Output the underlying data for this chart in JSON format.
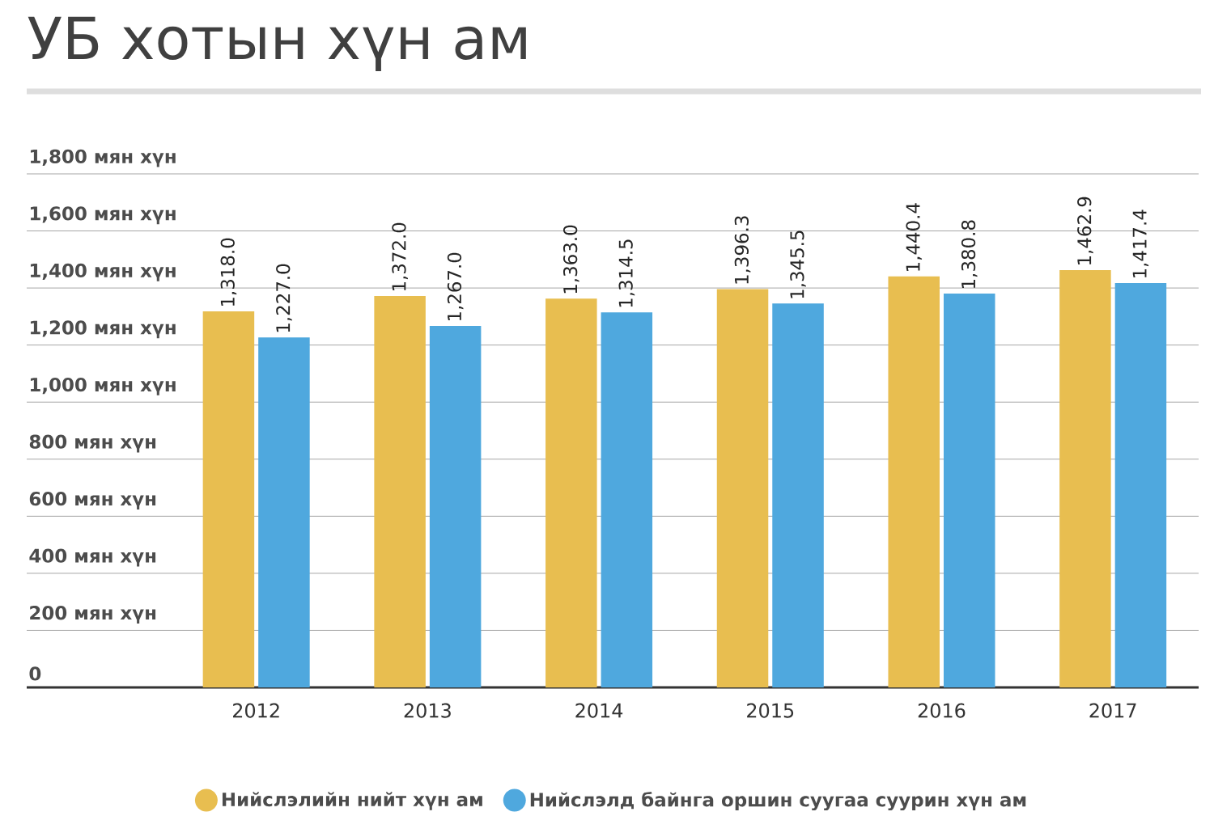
{
  "chart_data": {
    "type": "bar",
    "title": "УБ хотын хүн ам",
    "categories": [
      "2012",
      "2013",
      "2014",
      "2015",
      "2016",
      "2017"
    ],
    "series": [
      {
        "name": "Нийслэлийн нийт хүн ам",
        "color": "#e8be50",
        "values": [
          1318.0,
          1372.0,
          1363.0,
          1396.3,
          1440.4,
          1462.9
        ],
        "value_labels": [
          "1,318.0",
          "1,372.0",
          "1,363.0",
          "1,396.3",
          "1,440.4",
          "1,462.9"
        ]
      },
      {
        "name": "Нийслэлд байнга оршин суугаа суурин хүн ам",
        "color": "#4fa8de",
        "values": [
          1227.0,
          1267.0,
          1314.5,
          1345.5,
          1380.8,
          1417.4
        ],
        "value_labels": [
          "1,227.0",
          "1,267.0",
          "1,314.5",
          "1,345.5",
          "1,380.8",
          "1,417.4"
        ]
      }
    ],
    "ylim": [
      0,
      1800
    ],
    "yticks": [
      0,
      {
        "value": 200,
        "label": "200 мян хүн"
      },
      {
        "value": 400,
        "label": "400 мян хүн"
      },
      {
        "value": 600,
        "label": "600 мян хүн"
      },
      {
        "value": 800,
        "label": "800 мян хүн"
      },
      {
        "value": 1000,
        "label": "1,000 мян хүн"
      },
      {
        "value": 1200,
        "label": "1,200 мян хүн"
      },
      {
        "value": 1400,
        "label": "1,400 мян хүн"
      },
      {
        "value": 1600,
        "label": "1,600 мян хүн"
      },
      {
        "value": 1800,
        "label": "1,800 мян хүн"
      }
    ],
    "grid": "y",
    "legend": "bottom"
  }
}
